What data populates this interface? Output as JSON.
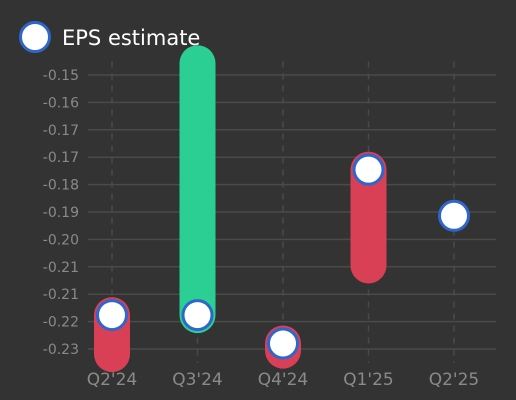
{
  "chart_data": {
    "type": "range-bar",
    "legend": {
      "position": "top-left",
      "entries": [
        {
          "label": "EPS estimate",
          "marker": "circle"
        }
      ]
    },
    "categories": [
      "Q2'24",
      "Q3'24",
      "Q4'24",
      "Q1'25",
      "Q2'25"
    ],
    "estimate": [
      -0.218,
      -0.218,
      -0.226,
      -0.177,
      -0.19
    ],
    "actual": [
      -0.229,
      -0.147,
      -0.228,
      -0.204,
      null
    ],
    "y_tick_labels": [
      "-0.15",
      "-0.16",
      "-0.17",
      "-0.17",
      "-0.18",
      "-0.19",
      "-0.20",
      "-0.21",
      "-0.21",
      "-0.22",
      "-0.23"
    ],
    "ylim": [
      -0.2315,
      -0.1465
    ],
    "grid": {
      "horizontal": true,
      "vertical": "dashed"
    },
    "colors": {
      "beat": "#2bcf94",
      "miss": "#d93f55",
      "marker_fill": "#ffffff",
      "marker_stroke": "#2e67cc",
      "grid": "#4a4a4a",
      "background": "#333333",
      "tick_text": "#8a8a8a",
      "legend_text": "#ffffff"
    }
  }
}
